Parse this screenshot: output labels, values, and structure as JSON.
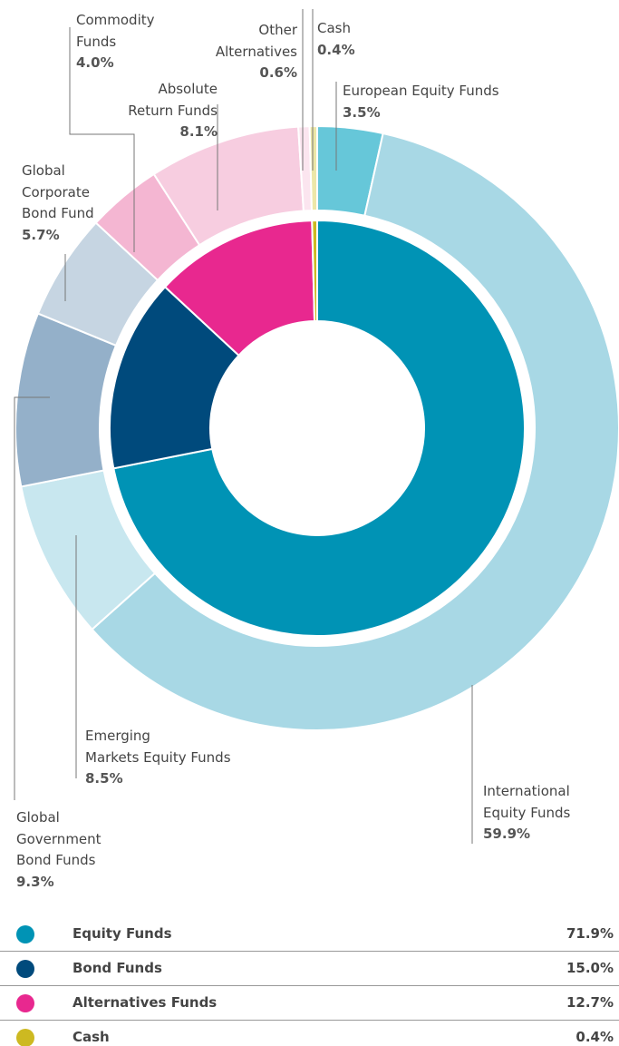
{
  "chart_data": {
    "type": "nested-donut",
    "outer": {
      "categories": [
        "European Equity Funds",
        "International\nEquity Funds",
        "Emerging\nMarkets Equity Funds",
        "Global\nGovernment\nBond Funds",
        "Global\nCorporate\nBond Fund",
        "Commodity\nFunds",
        "Absolute\nReturn Funds",
        "Other\nAlternatives",
        "Cash"
      ],
      "values": [
        3.5,
        59.9,
        8.5,
        9.3,
        5.7,
        4.0,
        8.1,
        0.6,
        0.4
      ],
      "value_labels": [
        "3.5%",
        "59.9%",
        "8.5%",
        "9.3%",
        "5.7%",
        "4.0%",
        "8.1%",
        "0.6%",
        "0.4%"
      ],
      "colors": [
        "#66c7d9",
        "#a8d8e5",
        "#c8e7ef",
        "#94b0c9",
        "#c6d5e2",
        "#f4b6d2",
        "#f7cde0",
        "#fbe5ef",
        "#ece7a8"
      ]
    },
    "inner": {
      "categories": [
        "Equity Funds",
        "Bond Funds",
        "Alternatives Funds",
        "Cash"
      ],
      "values": [
        71.9,
        15.0,
        12.7,
        0.4
      ],
      "value_labels": [
        "71.9%",
        "15.0%",
        "12.7%",
        "0.4%"
      ],
      "colors": [
        "#0093b5",
        "#004a7c",
        "#e8288f",
        "#cdb921"
      ]
    }
  }
}
